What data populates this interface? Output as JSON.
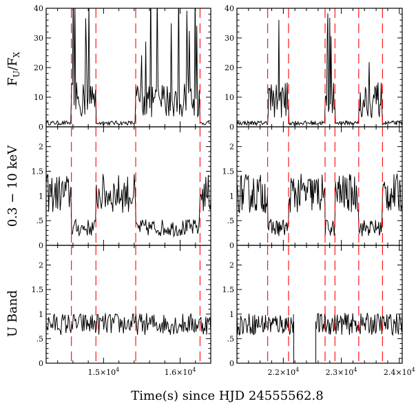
{
  "chart_data": {
    "type": "line",
    "xlabel": "Time(s) since HJD 24555562.8",
    "ylabels": [
      "F_U/F_X",
      "0.3 − 10 keV",
      "U Band"
    ],
    "rows": [
      {
        "name": "ratio",
        "ylim": [
          0,
          40
        ],
        "ticks": [
          0,
          10,
          20,
          30,
          40
        ],
        "tick_labels": [
          "0",
          "10",
          "20",
          "30",
          "40"
        ]
      },
      {
        "name": "xray",
        "ylim": [
          0,
          2.4
        ],
        "ticks": [
          0,
          0.5,
          1,
          1.5,
          2
        ],
        "tick_labels": [
          "0",
          ".5",
          "1",
          "1.5",
          "2"
        ]
      },
      {
        "name": "uband",
        "ylim": [
          0,
          2.4
        ],
        "ticks": [
          0,
          0.5,
          1,
          1.5,
          2
        ],
        "tick_labels": [
          "0",
          ".5",
          "1",
          "1.5",
          "2"
        ]
      }
    ],
    "columns": [
      {
        "xlim": [
          14250,
          16400
        ],
        "major_ticks": [
          15000,
          16000
        ],
        "tick_labels": [
          "1.5×10⁴",
          "1.6×10⁴"
        ],
        "dashed_lines": [
          14580,
          14900,
          15420,
          16260
        ],
        "low_intervals": [
          [
            14580,
            14900
          ],
          [
            15420,
            16260
          ]
        ]
      },
      {
        "xlim": [
          21200,
          24050
        ],
        "major_ticks": [
          22000,
          23000,
          24000
        ],
        "tick_labels": [
          "2.2×10⁴",
          "2.3×10⁴",
          "2.4×10⁴"
        ],
        "dashed_lines": [
          21730,
          22090,
          22720,
          22890,
          23300,
          23710
        ],
        "low_intervals": [
          [
            21730,
            22090
          ],
          [
            22720,
            22890
          ],
          [
            23300,
            23710
          ]
        ],
        "uband_gap": [
          22180,
          22560
        ]
      }
    ]
  }
}
